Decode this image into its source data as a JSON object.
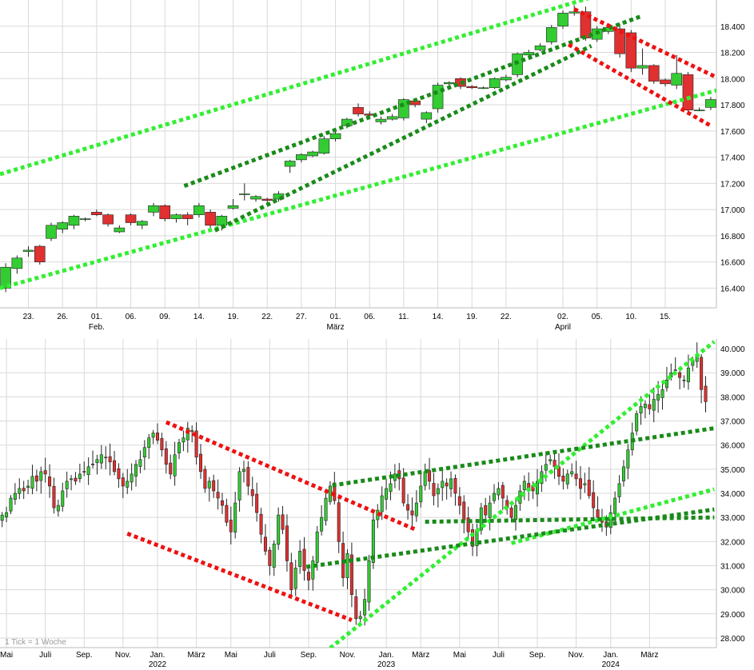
{
  "colors": {
    "up": "#33cc33",
    "down": "#e03030",
    "wick": "#222222",
    "grid": "#d9d9d9",
    "trend_light_green": "#33ee33",
    "trend_dark_green": "#1a8a1a",
    "trend_red": "#ee1111"
  },
  "chart_data": [
    {
      "type": "candlestick",
      "title": "",
      "grid": true,
      "ylim": [
        16.25,
        18.6
      ],
      "yticks": [
        16.4,
        16.6,
        16.8,
        17.0,
        17.2,
        17.4,
        17.6,
        17.8,
        18.0,
        18.2,
        18.4
      ],
      "ytick_labels": [
        "16.400",
        "16.600",
        "16.800",
        "17.000",
        "17.200",
        "17.400",
        "17.600",
        "17.800",
        "18.000",
        "18.200",
        "18.400"
      ],
      "xticks": [
        {
          "i": 2,
          "label": "23."
        },
        {
          "i": 5,
          "label": "26."
        },
        {
          "i": 8,
          "label": "01.",
          "sub": "Feb."
        },
        {
          "i": 11,
          "label": "06."
        },
        {
          "i": 14,
          "label": "09."
        },
        {
          "i": 17,
          "label": "14."
        },
        {
          "i": 20,
          "label": "19."
        },
        {
          "i": 23,
          "label": "22."
        },
        {
          "i": 26,
          "label": "27."
        },
        {
          "i": 29,
          "label": "01.",
          "sub": "März"
        },
        {
          "i": 32,
          "label": "06."
        },
        {
          "i": 35,
          "label": "11."
        },
        {
          "i": 38,
          "label": "14."
        },
        {
          "i": 41,
          "label": "19."
        },
        {
          "i": 44,
          "label": "22."
        },
        {
          "i": 49,
          "label": "02.",
          "sub": "April"
        },
        {
          "i": 52,
          "label": "05."
        },
        {
          "i": 55,
          "label": "10."
        },
        {
          "i": 58,
          "label": "15."
        }
      ],
      "candles": [
        [
          16.4,
          16.56,
          16.37,
          16.59
        ],
        [
          16.55,
          16.63,
          16.51,
          16.65
        ],
        [
          16.68,
          16.69,
          16.64,
          16.72
        ],
        [
          16.72,
          16.6,
          16.58,
          16.73
        ],
        [
          16.78,
          16.88,
          16.76,
          16.9
        ],
        [
          16.85,
          16.9,
          16.82,
          16.91
        ],
        [
          16.88,
          16.95,
          16.85,
          16.96
        ],
        [
          16.93,
          16.93,
          16.91,
          16.94
        ],
        [
          16.98,
          16.96,
          16.95,
          17.0
        ],
        [
          16.96,
          16.89,
          16.87,
          16.97
        ],
        [
          16.83,
          16.86,
          16.82,
          16.88
        ],
        [
          16.96,
          16.9,
          16.88,
          16.97
        ],
        [
          16.88,
          16.91,
          16.85,
          16.92
        ],
        [
          16.98,
          17.03,
          16.95,
          17.05
        ],
        [
          17.03,
          16.93,
          16.91,
          17.04
        ],
        [
          16.93,
          16.96,
          16.9,
          16.97
        ],
        [
          16.96,
          16.93,
          16.88,
          16.98
        ],
        [
          16.96,
          17.03,
          16.94,
          17.05
        ],
        [
          16.98,
          16.88,
          16.86,
          17.0
        ],
        [
          16.88,
          16.95,
          16.84,
          16.96
        ],
        [
          17.01,
          17.03,
          17.0,
          17.08
        ],
        [
          17.12,
          17.12,
          17.07,
          17.2
        ],
        [
          17.08,
          17.1,
          17.06,
          17.11
        ],
        [
          17.08,
          17.07,
          17.05,
          17.09
        ],
        [
          17.08,
          17.12,
          17.06,
          17.14
        ],
        [
          17.33,
          17.37,
          17.28,
          17.38
        ],
        [
          17.38,
          17.42,
          17.36,
          17.43
        ],
        [
          17.41,
          17.44,
          17.4,
          17.45
        ],
        [
          17.43,
          17.54,
          17.42,
          17.56
        ],
        [
          17.54,
          17.58,
          17.52,
          17.6
        ],
        [
          17.64,
          17.69,
          17.62,
          17.7
        ],
        [
          17.78,
          17.73,
          17.71,
          17.81
        ],
        [
          17.73,
          17.72,
          17.69,
          17.75
        ],
        [
          17.67,
          17.69,
          17.65,
          17.71
        ],
        [
          17.69,
          17.71,
          17.68,
          17.73
        ],
        [
          17.7,
          17.84,
          17.68,
          17.85
        ],
        [
          17.83,
          17.8,
          17.78,
          17.85
        ],
        [
          17.69,
          17.74,
          17.66,
          17.75
        ],
        [
          17.77,
          17.95,
          17.74,
          17.97
        ],
        [
          17.96,
          17.97,
          17.94,
          17.98
        ],
        [
          18.0,
          17.94,
          17.92,
          18.01
        ],
        [
          17.94,
          17.93,
          17.92,
          17.95
        ],
        [
          17.93,
          17.93,
          17.92,
          17.94
        ],
        [
          17.93,
          18.0,
          17.92,
          18.01
        ],
        [
          17.99,
          18.01,
          17.98,
          18.03
        ],
        [
          18.03,
          18.19,
          18.01,
          18.2
        ],
        [
          18.18,
          18.2,
          18.17,
          18.22
        ],
        [
          18.22,
          18.25,
          18.21,
          18.27
        ],
        [
          18.28,
          18.39,
          18.26,
          18.41
        ],
        [
          18.4,
          18.5,
          18.38,
          18.52
        ],
        [
          18.5,
          18.51,
          18.48,
          18.56
        ],
        [
          18.51,
          18.31,
          18.29,
          18.55
        ],
        [
          18.3,
          18.38,
          18.28,
          18.4
        ],
        [
          18.36,
          18.39,
          18.34,
          18.41
        ],
        [
          18.38,
          18.19,
          18.16,
          18.42
        ],
        [
          18.35,
          18.08,
          18.05,
          18.37
        ],
        [
          18.08,
          18.1,
          18.03,
          18.23
        ],
        [
          18.1,
          17.98,
          17.96,
          18.11
        ],
        [
          17.99,
          17.96,
          17.94,
          18.0
        ],
        [
          17.95,
          18.04,
          17.92,
          18.18
        ],
        [
          18.03,
          17.76,
          17.74,
          18.05
        ],
        [
          17.76,
          17.76,
          17.75,
          17.78
        ],
        [
          17.78,
          17.84,
          17.76,
          17.86
        ]
      ],
      "trendlines": [
        {
          "style": "light_green",
          "from": [
            -0.5,
            17.27
          ],
          "to": [
            51.5,
            18.62
          ]
        },
        {
          "style": "light_green",
          "from": [
            -0.5,
            16.4
          ],
          "to": [
            62.5,
            17.91
          ]
        },
        {
          "style": "dark_green",
          "from": [
            15.7,
            17.18
          ],
          "to": [
            56.0,
            18.48
          ]
        },
        {
          "style": "dark_green",
          "from": [
            18.4,
            16.84
          ],
          "to": [
            51.5,
            18.25
          ]
        },
        {
          "style": "red",
          "from": [
            50.0,
            18.53
          ],
          "to": [
            62.5,
            18.01
          ]
        },
        {
          "style": "red",
          "from": [
            49.5,
            18.26
          ],
          "to": [
            62.0,
            17.64
          ]
        }
      ]
    },
    {
      "type": "candlestick",
      "title": "",
      "grid": true,
      "note": "1 Tick = 1 Woche",
      "ylim": [
        27.6,
        40.4
      ],
      "yticks": [
        28,
        29,
        30,
        31,
        32,
        33,
        34,
        35,
        36,
        37,
        38,
        39,
        40
      ],
      "ytick_labels": [
        "28.000",
        "29.000",
        "30.000",
        "31.000",
        "32.000",
        "33.000",
        "34.000",
        "35.000",
        "36.000",
        "37.000",
        "38.000",
        "39.000",
        "40.000"
      ],
      "xticks": [
        {
          "i": 1,
          "label": "Mai"
        },
        {
          "i": 10,
          "label": "Juli"
        },
        {
          "i": 19,
          "label": "Sep."
        },
        {
          "i": 28,
          "label": "Nov."
        },
        {
          "i": 36,
          "label": "Jan.",
          "sub": "2022"
        },
        {
          "i": 45,
          "label": "März"
        },
        {
          "i": 53,
          "label": "Mai"
        },
        {
          "i": 62,
          "label": "Juli"
        },
        {
          "i": 71,
          "label": "Sep."
        },
        {
          "i": 80,
          "label": "Nov."
        },
        {
          "i": 89,
          "label": "Jan.",
          "sub": "2023"
        },
        {
          "i": 97,
          "label": "März"
        },
        {
          "i": 106,
          "label": "Mai"
        },
        {
          "i": 115,
          "label": "Juli"
        },
        {
          "i": 124,
          "label": "Sep."
        },
        {
          "i": 133,
          "label": "Nov."
        },
        {
          "i": 141,
          "label": "Jan.",
          "sub": "2024"
        },
        {
          "i": 150,
          "label": "März"
        }
      ],
      "closes": [
        33.1,
        33.2,
        33.8,
        34.0,
        34.2,
        34.1,
        34.3,
        34.7,
        34.5,
        34.9,
        34.8,
        34.3,
        33.4,
        33.5,
        34.1,
        34.5,
        34.6,
        34.5,
        34.8,
        34.9,
        35.1,
        35.2,
        35.4,
        35.6,
        35.5,
        35.3,
        34.9,
        34.6,
        34.3,
        34.5,
        34.8,
        35.2,
        35.4,
        35.9,
        36.3,
        36.5,
        36.2,
        35.8,
        35.2,
        34.8,
        35.6,
        36.1,
        36.3,
        36.7,
        36.6,
        35.5,
        34.9,
        34.2,
        34.5,
        34.1,
        33.8,
        33.5,
        32.8,
        32.4,
        33.6,
        34.9,
        35.0,
        34.3,
        33.9,
        33.2,
        32.3,
        31.6,
        31.0,
        31.9,
        33.1,
        32.5,
        31.2,
        30.0,
        30.9,
        31.6,
        30.8,
        30.4,
        31.2,
        32.4,
        33.0,
        33.8,
        34.3,
        33.7,
        32.0,
        30.5,
        31.5,
        29.8,
        28.8,
        28.9,
        29.6,
        31.2,
        32.9,
        33.3,
        33.9,
        34.2,
        34.4,
        34.8,
        34.6,
        33.6,
        33.3,
        33.1,
        33.6,
        34.3,
        34.9,
        34.5,
        33.9,
        34.2,
        34.5,
        34.3,
        34.6,
        34.0,
        33.5,
        32.9,
        32.4,
        31.8,
        32.5,
        33.4,
        33.1,
        33.6,
        34.0,
        34.2,
        33.8,
        33.4,
        33.0,
        33.5,
        34.1,
        34.5,
        34.2,
        34.1,
        34.5,
        34.9,
        35.2,
        35.4,
        35.1,
        34.7,
        34.5,
        34.8,
        34.9,
        34.6,
        34.2,
        34.4,
        33.9,
        33.4,
        33.0,
        32.8,
        32.6,
        33.2,
        33.8,
        34.4,
        35.1,
        35.8,
        36.5,
        37.3,
        37.6,
        37.7,
        37.5,
        37.9,
        38.1,
        38.3,
        38.7,
        39.0,
        39.1,
        38.8,
        38.7,
        39.2,
        39.5,
        39.7,
        38.3,
        37.8
      ],
      "trendlines": [
        {
          "style": "light_green",
          "from": [
            76.0,
            27.58
          ],
          "to": [
            165.0,
            40.29
          ]
        },
        {
          "style": "light_green",
          "from": [
            118.0,
            31.93
          ],
          "to": [
            165.0,
            34.17
          ]
        },
        {
          "style": "dark_green",
          "from": [
            98.0,
            32.82
          ],
          "to": [
            165.0,
            33.0
          ]
        },
        {
          "style": "dark_green",
          "from": [
            70.5,
            30.95
          ],
          "to": [
            165.0,
            33.33
          ]
        },
        {
          "style": "dark_green",
          "from": [
            76.5,
            34.33
          ],
          "to": [
            165.0,
            36.7
          ]
        },
        {
          "style": "red",
          "from": [
            38.0,
            36.95
          ],
          "to": [
            96.0,
            32.48
          ]
        },
        {
          "style": "red",
          "from": [
            29.0,
            32.33
          ],
          "to": [
            81.0,
            28.74
          ]
        }
      ]
    }
  ]
}
